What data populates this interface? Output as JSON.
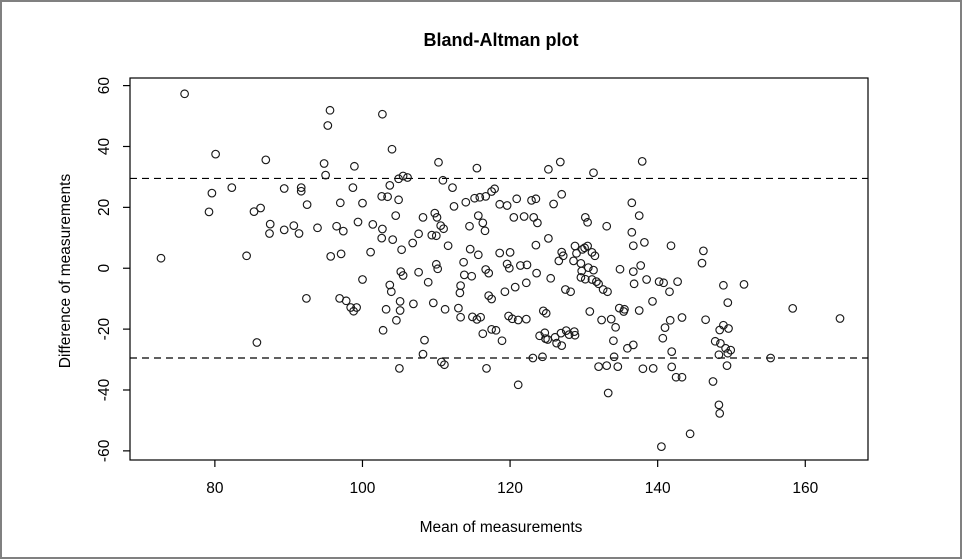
{
  "figure": {
    "title": "Bland-Altman plot",
    "xlabel": "Mean of measurements",
    "ylabel": "Difference of measurements"
  },
  "colors": {
    "background": "#ffffff",
    "frame_border": "#808080",
    "axis": "#000000",
    "marker": "#1a1a1a",
    "reference_line": "#000000"
  },
  "chart_data": {
    "type": "scatter",
    "title": "Bland-Altman plot",
    "xlabel": "Mean of measurements",
    "ylabel": "Difference of measurements",
    "xlim": [
      68.5,
      168.5
    ],
    "ylim": [
      -63,
      62.5
    ],
    "x_ticks": [
      80,
      100,
      120,
      140,
      160
    ],
    "y_ticks": [
      -60,
      -40,
      -20,
      0,
      20,
      40,
      60
    ],
    "grid": false,
    "legend": "none",
    "marker": "open-circle",
    "reference_lines": [
      {
        "name": "upper-limit-of-agreement",
        "y": 29.5,
        "style": "dashed"
      },
      {
        "name": "lower-limit-of-agreement",
        "y": -29.5,
        "style": "dashed"
      }
    ],
    "points": [
      [
        75.9,
        57.3
      ],
      [
        95.6,
        51.9
      ],
      [
        95.3,
        46.9
      ],
      [
        102.7,
        50.6
      ],
      [
        80.1,
        37.5
      ],
      [
        86.9,
        35.6
      ],
      [
        94.8,
        34.4
      ],
      [
        98.9,
        33.5
      ],
      [
        95.0,
        30.6
      ],
      [
        79.6,
        24.7
      ],
      [
        82.3,
        26.5
      ],
      [
        89.4,
        26.2
      ],
      [
        91.7,
        26.5
      ],
      [
        91.7,
        25.3
      ],
      [
        98.7,
        26.5
      ],
      [
        104.0,
        39.1
      ],
      [
        110.3,
        34.8
      ],
      [
        115.5,
        32.9
      ],
      [
        125.2,
        32.5
      ],
      [
        126.8,
        34.9
      ],
      [
        131.3,
        31.4
      ],
      [
        137.9,
        35.1
      ],
      [
        104.9,
        29.4
      ],
      [
        105.5,
        30.3
      ],
      [
        106.1,
        29.8
      ],
      [
        103.7,
        27.2
      ],
      [
        110.9,
        28.9
      ],
      [
        112.2,
        26.5
      ],
      [
        102.6,
        23.6
      ],
      [
        103.4,
        23.5
      ],
      [
        104.9,
        22.5
      ],
      [
        114.0,
        21.7
      ],
      [
        115.2,
        23.0
      ],
      [
        115.9,
        23.3
      ],
      [
        116.7,
        23.6
      ],
      [
        117.5,
        25.2
      ],
      [
        117.9,
        26.1
      ],
      [
        120.9,
        22.8
      ],
      [
        122.9,
        22.3
      ],
      [
        123.5,
        22.8
      ],
      [
        127.0,
        24.3
      ],
      [
        125.9,
        21.1
      ],
      [
        136.5,
        21.5
      ],
      [
        79.2,
        18.5
      ],
      [
        85.3,
        18.6
      ],
      [
        86.2,
        19.8
      ],
      [
        92.5,
        20.9
      ],
      [
        97.0,
        21.5
      ],
      [
        100.0,
        21.4
      ],
      [
        112.4,
        20.3
      ],
      [
        118.6,
        21.0
      ],
      [
        119.6,
        20.6
      ],
      [
        104.5,
        17.3
      ],
      [
        108.2,
        16.7
      ],
      [
        109.8,
        18.1
      ],
      [
        110.1,
        16.7
      ],
      [
        115.7,
        17.3
      ],
      [
        120.5,
        16.7
      ],
      [
        121.9,
        17.0
      ],
      [
        123.2,
        16.7
      ],
      [
        123.7,
        14.9
      ],
      [
        130.2,
        16.7
      ],
      [
        130.5,
        15.1
      ],
      [
        133.1,
        13.8
      ],
      [
        137.5,
        17.3
      ],
      [
        87.5,
        14.5
      ],
      [
        87.4,
        11.4
      ],
      [
        89.4,
        12.6
      ],
      [
        90.7,
        14.0
      ],
      [
        91.4,
        11.4
      ],
      [
        93.9,
        13.3
      ],
      [
        96.5,
        13.8
      ],
      [
        97.4,
        12.2
      ],
      [
        99.4,
        15.2
      ],
      [
        101.4,
        14.4
      ],
      [
        110.6,
        14.0
      ],
      [
        111.0,
        13.0
      ],
      [
        114.5,
        13.8
      ],
      [
        116.3,
        14.9
      ],
      [
        116.6,
        12.3
      ],
      [
        102.7,
        12.9
      ],
      [
        102.6,
        9.9
      ],
      [
        104.1,
        9.4
      ],
      [
        106.8,
        8.3
      ],
      [
        107.6,
        11.3
      ],
      [
        109.4,
        10.9
      ],
      [
        110.0,
        10.7
      ],
      [
        136.5,
        11.8
      ],
      [
        136.7,
        7.4
      ],
      [
        138.2,
        8.5
      ],
      [
        141.8,
        7.4
      ],
      [
        146.2,
        5.7
      ],
      [
        105.3,
        6.1
      ],
      [
        111.6,
        7.4
      ],
      [
        114.6,
        6.3
      ],
      [
        115.7,
        4.4
      ],
      [
        118.6,
        5.0
      ],
      [
        120.0,
        5.2
      ],
      [
        123.5,
        7.6
      ],
      [
        125.2,
        9.8
      ],
      [
        72.7,
        3.3
      ],
      [
        84.3,
        4.1
      ],
      [
        95.7,
        3.9
      ],
      [
        97.1,
        4.7
      ],
      [
        101.1,
        5.3
      ],
      [
        146.0,
        1.7
      ],
      [
        127.0,
        5.3
      ],
      [
        127.2,
        4.1
      ],
      [
        126.6,
        2.4
      ],
      [
        128.8,
        7.3
      ],
      [
        129.8,
        6.2
      ],
      [
        130.1,
        6.7
      ],
      [
        130.5,
        7.3
      ],
      [
        129.0,
        4.9
      ],
      [
        131.1,
        5.2
      ],
      [
        131.5,
        4.1
      ],
      [
        128.6,
        2.4
      ],
      [
        129.6,
        1.6
      ],
      [
        130.6,
        0.2
      ],
      [
        131.3,
        -0.6
      ],
      [
        129.7,
        -0.9
      ],
      [
        129.6,
        -3.0
      ],
      [
        130.2,
        -3.6
      ],
      [
        110.0,
        1.3
      ],
      [
        110.2,
        -0.2
      ],
      [
        113.7,
        2.0
      ],
      [
        119.6,
        1.4
      ],
      [
        119.9,
        0.0
      ],
      [
        121.4,
        0.9
      ],
      [
        122.3,
        1.1
      ],
      [
        116.7,
        -0.4
      ],
      [
        117.1,
        -1.6
      ],
      [
        105.2,
        -1.1
      ],
      [
        105.5,
        -2.4
      ],
      [
        107.6,
        -1.3
      ],
      [
        113.8,
        -2.2
      ],
      [
        114.8,
        -2.6
      ],
      [
        123.6,
        -1.6
      ],
      [
        125.5,
        -3.3
      ],
      [
        134.9,
        -0.3
      ],
      [
        136.7,
        -1.1
      ],
      [
        137.7,
        0.9
      ],
      [
        100.0,
        -3.7
      ],
      [
        108.9,
        -4.6
      ],
      [
        103.7,
        -5.5
      ],
      [
        103.9,
        -7.7
      ],
      [
        113.3,
        -5.7
      ],
      [
        113.2,
        -8.1
      ],
      [
        119.3,
        -7.7
      ],
      [
        120.7,
        -6.2
      ],
      [
        122.2,
        -4.8
      ],
      [
        127.5,
        -7.0
      ],
      [
        128.2,
        -7.7
      ],
      [
        131.1,
        -3.7
      ],
      [
        131.7,
        -4.4
      ],
      [
        132.0,
        -5.1
      ],
      [
        132.6,
        -7.0
      ],
      [
        133.2,
        -7.7
      ],
      [
        136.8,
        -5.1
      ],
      [
        138.5,
        -3.7
      ],
      [
        140.2,
        -4.4
      ],
      [
        140.8,
        -4.8
      ],
      [
        142.7,
        -4.4
      ],
      [
        141.6,
        -7.7
      ],
      [
        148.9,
        -5.6
      ],
      [
        151.7,
        -5.3
      ],
      [
        92.4,
        -9.9
      ],
      [
        96.9,
        -9.9
      ],
      [
        97.8,
        -10.7
      ],
      [
        98.4,
        -12.9
      ],
      [
        99.2,
        -12.9
      ],
      [
        98.8,
        -14.1
      ],
      [
        117.1,
        -9.0
      ],
      [
        117.5,
        -10.1
      ],
      [
        105.1,
        -10.9
      ],
      [
        106.9,
        -11.7
      ],
      [
        109.6,
        -11.4
      ],
      [
        139.3,
        -10.9
      ],
      [
        149.5,
        -11.3
      ],
      [
        103.2,
        -13.5
      ],
      [
        105.1,
        -13.9
      ],
      [
        111.2,
        -13.5
      ],
      [
        113.0,
        -13.1
      ],
      [
        124.5,
        -14.0
      ],
      [
        124.9,
        -14.8
      ],
      [
        130.8,
        -14.2
      ],
      [
        134.8,
        -13.1
      ],
      [
        135.4,
        -14.2
      ],
      [
        135.5,
        -13.5
      ],
      [
        137.5,
        -13.9
      ],
      [
        158.3,
        -13.2
      ],
      [
        113.3,
        -16.1
      ],
      [
        114.9,
        -16.0
      ],
      [
        115.5,
        -16.8
      ],
      [
        116.0,
        -16.1
      ],
      [
        119.8,
        -15.7
      ],
      [
        120.3,
        -16.6
      ],
      [
        121.1,
        -17.0
      ],
      [
        122.2,
        -16.7
      ],
      [
        132.4,
        -17.0
      ],
      [
        133.7,
        -16.7
      ],
      [
        104.6,
        -17.1
      ],
      [
        141.7,
        -17.1
      ],
      [
        143.3,
        -16.2
      ],
      [
        146.5,
        -16.9
      ],
      [
        164.7,
        -16.5
      ],
      [
        117.5,
        -20.1
      ],
      [
        118.1,
        -20.4
      ],
      [
        116.3,
        -21.5
      ],
      [
        102.8,
        -20.4
      ],
      [
        127.6,
        -20.5
      ],
      [
        128.7,
        -20.8
      ],
      [
        134.3,
        -19.4
      ],
      [
        141.0,
        -19.5
      ],
      [
        148.4,
        -20.3
      ],
      [
        148.9,
        -18.7
      ],
      [
        149.6,
        -19.8
      ],
      [
        124.7,
        -21.2
      ],
      [
        85.7,
        -24.4
      ],
      [
        108.4,
        -23.6
      ],
      [
        108.2,
        -28.2
      ],
      [
        105.0,
        -32.9
      ],
      [
        110.7,
        -30.8
      ],
      [
        111.1,
        -31.7
      ],
      [
        118.9,
        -23.8
      ],
      [
        116.8,
        -32.9
      ],
      [
        121.1,
        -38.3
      ],
      [
        123.1,
        -29.5
      ],
      [
        124.4,
        -29.1
      ],
      [
        124.0,
        -22.2
      ],
      [
        124.8,
        -23.1
      ],
      [
        125.1,
        -23.4
      ],
      [
        126.1,
        -22.7
      ],
      [
        126.9,
        -21.3
      ],
      [
        126.3,
        -24.6
      ],
      [
        127.0,
        -25.4
      ],
      [
        128.0,
        -21.8
      ],
      [
        128.8,
        -22.0
      ],
      [
        132.0,
        -32.3
      ],
      [
        133.1,
        -32.0
      ],
      [
        134.1,
        -29.1
      ],
      [
        134.6,
        -32.3
      ],
      [
        134.0,
        -23.8
      ],
      [
        133.3,
        -41.0
      ],
      [
        135.9,
        -26.3
      ],
      [
        136.7,
        -25.2
      ],
      [
        140.7,
        -23.0
      ],
      [
        141.9,
        -27.4
      ],
      [
        141.9,
        -32.4
      ],
      [
        138.0,
        -33.0
      ],
      [
        139.4,
        -32.9
      ],
      [
        142.5,
        -35.8
      ],
      [
        143.3,
        -35.8
      ],
      [
        147.8,
        -24.0
      ],
      [
        148.5,
        -24.7
      ],
      [
        149.2,
        -26.3
      ],
      [
        149.9,
        -26.9
      ],
      [
        148.3,
        -28.4
      ],
      [
        149.5,
        -27.9
      ],
      [
        149.4,
        -32.0
      ],
      [
        147.5,
        -37.2
      ],
      [
        155.3,
        -29.5
      ],
      [
        148.3,
        -44.9
      ],
      [
        148.4,
        -47.7
      ],
      [
        144.4,
        -54.4
      ],
      [
        140.5,
        -58.6
      ]
    ]
  }
}
